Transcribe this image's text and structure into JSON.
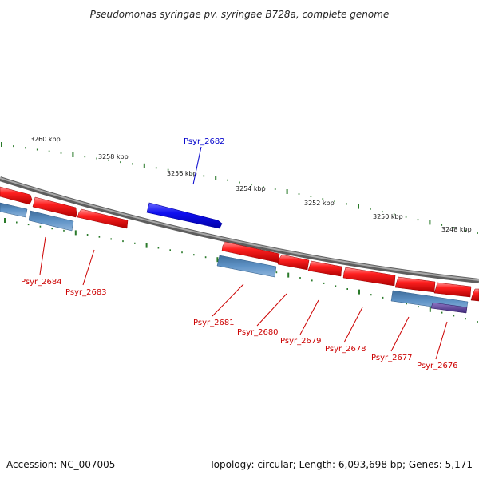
{
  "title": "Pseudomonas syringae pv. syringae B728a, complete genome",
  "footer": {
    "accession": "Accession: NC_007005",
    "summary": "Topology: circular; Length: 6,093,698 bp; Genes: 5,171"
  },
  "scale_labels": [
    "3260 kbp",
    "3258 kbp",
    "3256 kbp",
    "3254 kbp",
    "3252 kbp",
    "3250 kbp",
    "3248 kbp"
  ],
  "gene_labels": [
    {
      "text": "Psyr_2682",
      "strand": "forward"
    },
    {
      "text": "Psyr_2684",
      "strand": "reverse"
    },
    {
      "text": "Psyr_2683",
      "strand": "reverse"
    },
    {
      "text": "Psyr_2681",
      "strand": "reverse"
    },
    {
      "text": "Psyr_2680",
      "strand": "reverse"
    },
    {
      "text": "Psyr_2679",
      "strand": "reverse"
    },
    {
      "text": "Psyr_2678",
      "strand": "reverse"
    },
    {
      "text": "Psyr_2677",
      "strand": "reverse"
    },
    {
      "text": "Psyr_2676",
      "strand": "reverse"
    }
  ],
  "colors": {
    "forward_gene": "#1a1aee",
    "reverse_gene": "#ee1111",
    "rna_feature": "#4f84b8",
    "overlap_feature": "#5a3f96",
    "backbone": "#888888",
    "tick": "#2a7a2a",
    "label_red": "#cc0000",
    "label_blue": "#0000cc"
  }
}
